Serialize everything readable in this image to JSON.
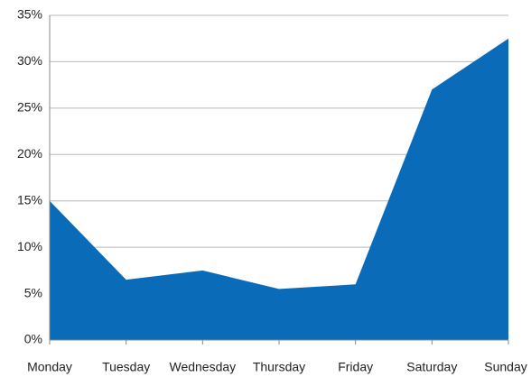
{
  "chart_data": {
    "type": "area",
    "categories": [
      "Monday",
      "Tuesday",
      "Wednesday",
      "Thursday",
      "Friday",
      "Saturday",
      "Sunday"
    ],
    "values": [
      15,
      6.5,
      7.5,
      5.5,
      6,
      27,
      32.5
    ],
    "color": "#0a6bb8",
    "ylim": [
      0,
      35
    ],
    "yticks": [
      {
        "value": 0,
        "label": "0%"
      },
      {
        "value": 5,
        "label": "5%"
      },
      {
        "value": 10,
        "label": "10%"
      },
      {
        "value": 15,
        "label": "15%"
      },
      {
        "value": 20,
        "label": "20%"
      },
      {
        "value": 25,
        "label": "25%"
      },
      {
        "value": 30,
        "label": "30%"
      },
      {
        "value": 35,
        "label": "35%"
      }
    ],
    "grid": true
  }
}
